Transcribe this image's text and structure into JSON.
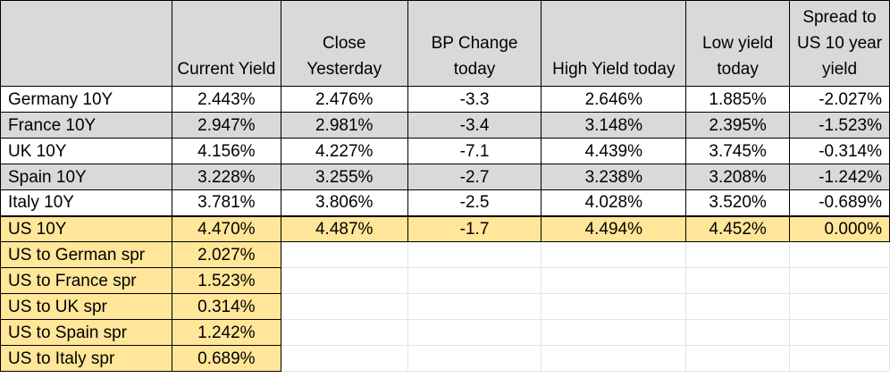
{
  "sheet": {
    "headers": [
      "",
      "Current Yield",
      "Close Yesterday",
      "BP Change today",
      "High Yield today",
      "Low yield today",
      "Spread to US 10 year yield"
    ],
    "rows": [
      {
        "label": "Germany 10Y",
        "current": "2.443%",
        "close": "2.476%",
        "bp": "-3.3",
        "high": "2.646%",
        "low": "1.885%",
        "spread": "-2.027%"
      },
      {
        "label": "France 10Y",
        "current": "2.947%",
        "close": "2.981%",
        "bp": "-3.4",
        "high": "3.148%",
        "low": "2.395%",
        "spread": "-1.523%"
      },
      {
        "label": "UK 10Y",
        "current": "4.156%",
        "close": "4.227%",
        "bp": "-7.1",
        "high": "4.439%",
        "low": "3.745%",
        "spread": "-0.314%"
      },
      {
        "label": "Spain 10Y",
        "current": "3.228%",
        "close": "3.255%",
        "bp": "-2.7",
        "high": "3.238%",
        "low": "3.208%",
        "spread": "-1.242%"
      },
      {
        "label": "Italy 10Y",
        "current": "3.781%",
        "close": "3.806%",
        "bp": "-2.5",
        "high": "4.028%",
        "low": "3.520%",
        "spread": "-0.689%"
      },
      {
        "label": "US 10Y",
        "current": "4.470%",
        "close": "4.487%",
        "bp": "-1.7",
        "high": "4.494%",
        "low": "4.452%",
        "spread": "0.000%"
      }
    ],
    "spreads": [
      {
        "label": "US to German spr",
        "value": "2.027%"
      },
      {
        "label": "US to France spr",
        "value": "1.523%"
      },
      {
        "label": "US to UK spr",
        "value": "0.314%"
      },
      {
        "label": "US to Spain spr",
        "value": "1.242%"
      },
      {
        "label": "US to Italy spr",
        "value": "0.689%"
      }
    ],
    "colors": {
      "header_fill": "#d9d9d9",
      "alt_row_fill": "#d9d9d9",
      "us_fill": "#ffe699",
      "border": "#000000"
    }
  }
}
